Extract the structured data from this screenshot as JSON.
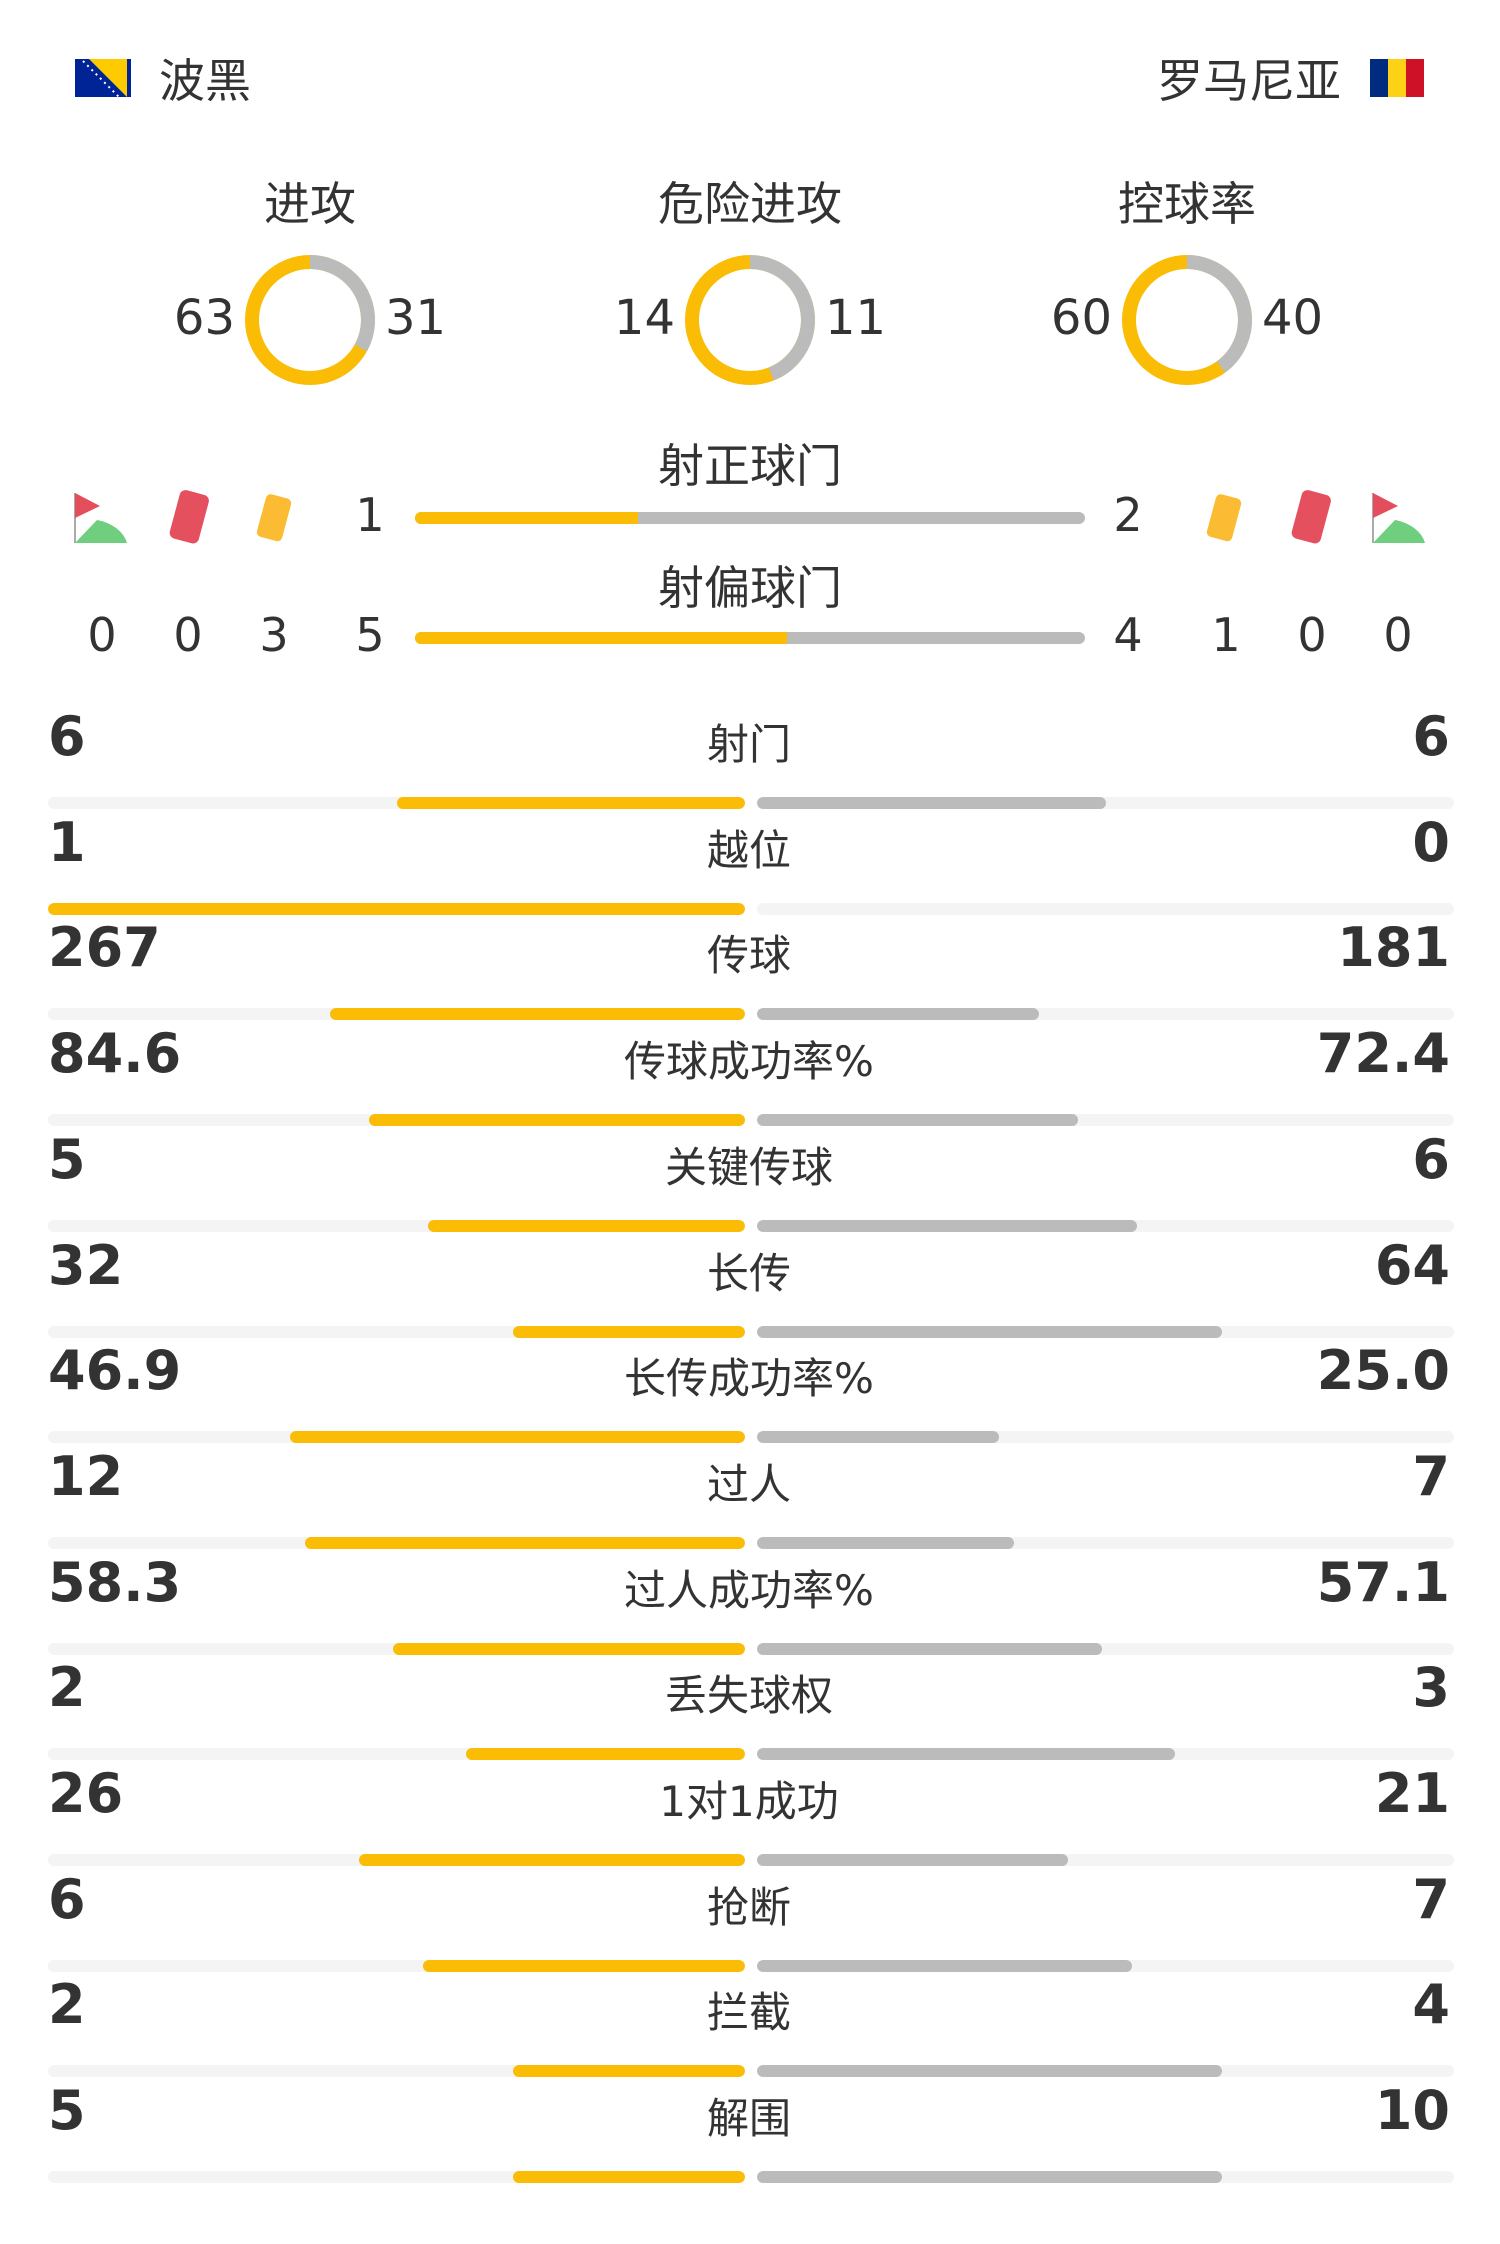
{
  "home": {
    "name": "波黑",
    "flag": "bosnia-flag-icon"
  },
  "away": {
    "name": "罗马尼亚",
    "flag": "romania-flag-icon"
  },
  "colors": {
    "home": "#FBBC05",
    "away": "#BBBBBB",
    "track": "#F4F4F4"
  },
  "donuts": [
    {
      "label": "进攻",
      "home": 63,
      "away": 31
    },
    {
      "label": "危险进攻",
      "home": 14,
      "away": 11
    },
    {
      "label": "控球率",
      "home": 60,
      "away": 40
    }
  ],
  "shots_on": {
    "label": "射正球门",
    "home": 1,
    "away": 2
  },
  "shots_off": {
    "label": "射偏球门",
    "home": 5,
    "away": 4
  },
  "cards": {
    "home": {
      "corners": 0,
      "red": 0,
      "yellow": 3
    },
    "away": {
      "corners": 0,
      "red": 0,
      "yellow": 1
    }
  },
  "stats": [
    {
      "label": "射门",
      "home": "6",
      "away": "6"
    },
    {
      "label": "越位",
      "home": "1",
      "away": "0"
    },
    {
      "label": "传球",
      "home": "267",
      "away": "181"
    },
    {
      "label": "传球成功率%",
      "home": "84.6",
      "away": "72.4"
    },
    {
      "label": "关键传球",
      "home": "5",
      "away": "6"
    },
    {
      "label": "长传",
      "home": "32",
      "away": "64"
    },
    {
      "label": "长传成功率%",
      "home": "46.9",
      "away": "25.0"
    },
    {
      "label": "过人",
      "home": "12",
      "away": "7"
    },
    {
      "label": "过人成功率%",
      "home": "58.3",
      "away": "57.1"
    },
    {
      "label": "丢失球权",
      "home": "2",
      "away": "3"
    },
    {
      "label": "1对1成功",
      "home": "26",
      "away": "21"
    },
    {
      "label": "抢断",
      "home": "6",
      "away": "7"
    },
    {
      "label": "拦截",
      "home": "2",
      "away": "4"
    },
    {
      "label": "解围",
      "home": "5",
      "away": "10"
    }
  ]
}
